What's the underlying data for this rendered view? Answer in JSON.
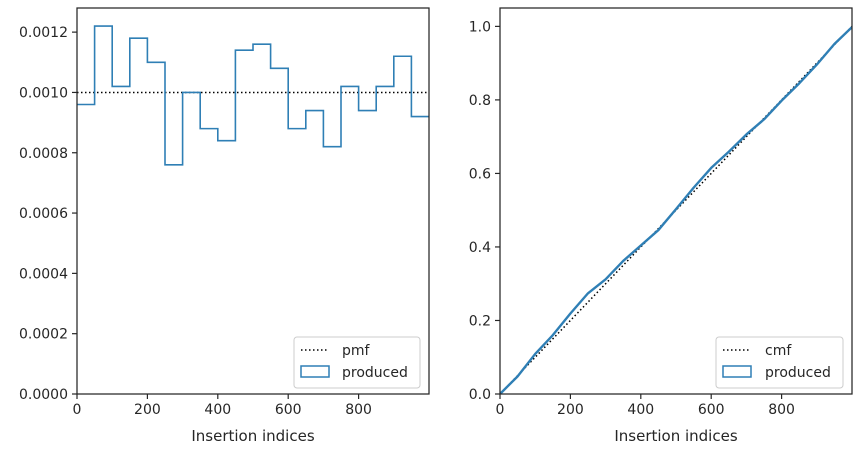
{
  "colors": {
    "series": "#2f7fb5",
    "reference": "#000000",
    "axes": "#262626"
  },
  "chart_data": [
    {
      "type": "line",
      "drawstyle": "steps-post",
      "xlabel": "Insertion indices",
      "ylabel": "",
      "xlim": [
        0,
        1000
      ],
      "ylim": [
        0,
        0.00128
      ],
      "xticks": [
        0,
        200,
        400,
        600,
        800
      ],
      "xtick_labels": [
        "0",
        "200",
        "400",
        "600",
        "800"
      ],
      "yticks": [
        0,
        0.0002,
        0.0004,
        0.0006,
        0.0008,
        0.001,
        0.0012
      ],
      "ytick_labels": [
        "0.0000",
        "0.0002",
        "0.0004",
        "0.0006",
        "0.0008",
        "0.0010",
        "0.0012"
      ],
      "grid": false,
      "legend_position": "lower-right",
      "series": [
        {
          "name": "pmf",
          "style": "dotted",
          "x": [
            0,
            1000
          ],
          "y": [
            0.001,
            0.001
          ]
        },
        {
          "name": "produced",
          "style": "step",
          "bin_edges": [
            0,
            50,
            100,
            150,
            200,
            250,
            300,
            350,
            400,
            450,
            500,
            550,
            600,
            650,
            700,
            750,
            800,
            850,
            900,
            950,
            1000
          ],
          "values": [
            0.00096,
            0.00122,
            0.00102,
            0.00118,
            0.0011,
            0.00076,
            0.001,
            0.00088,
            0.00084,
            0.00114,
            0.00116,
            0.00108,
            0.00088,
            0.00094,
            0.00082,
            0.00102,
            0.00094,
            0.00102,
            0.00112,
            0.00092
          ]
        }
      ]
    },
    {
      "type": "line",
      "xlabel": "Insertion indices",
      "ylabel": "",
      "xlim": [
        0,
        1000
      ],
      "ylim": [
        0,
        1.05
      ],
      "xticks": [
        0,
        200,
        400,
        600,
        800
      ],
      "xtick_labels": [
        "0",
        "200",
        "400",
        "600",
        "800"
      ],
      "yticks": [
        0,
        0.2,
        0.4,
        0.6,
        0.8,
        1.0
      ],
      "ytick_labels": [
        "0.0",
        "0.2",
        "0.4",
        "0.6",
        "0.8",
        "1.0"
      ],
      "grid": false,
      "legend_position": "lower-right",
      "series": [
        {
          "name": "cmf",
          "style": "dotted",
          "x": [
            0,
            1000
          ],
          "y": [
            0,
            1
          ]
        },
        {
          "name": "produced",
          "style": "solid",
          "x": [
            0,
            50,
            100,
            150,
            200,
            250,
            300,
            350,
            400,
            450,
            500,
            550,
            600,
            650,
            700,
            750,
            800,
            850,
            900,
            950,
            1000
          ],
          "y": [
            0,
            0.048,
            0.109,
            0.16,
            0.219,
            0.274,
            0.312,
            0.362,
            0.404,
            0.446,
            0.503,
            0.561,
            0.615,
            0.659,
            0.706,
            0.747,
            0.798,
            0.845,
            0.896,
            0.952,
            0.998
          ]
        }
      ]
    }
  ]
}
